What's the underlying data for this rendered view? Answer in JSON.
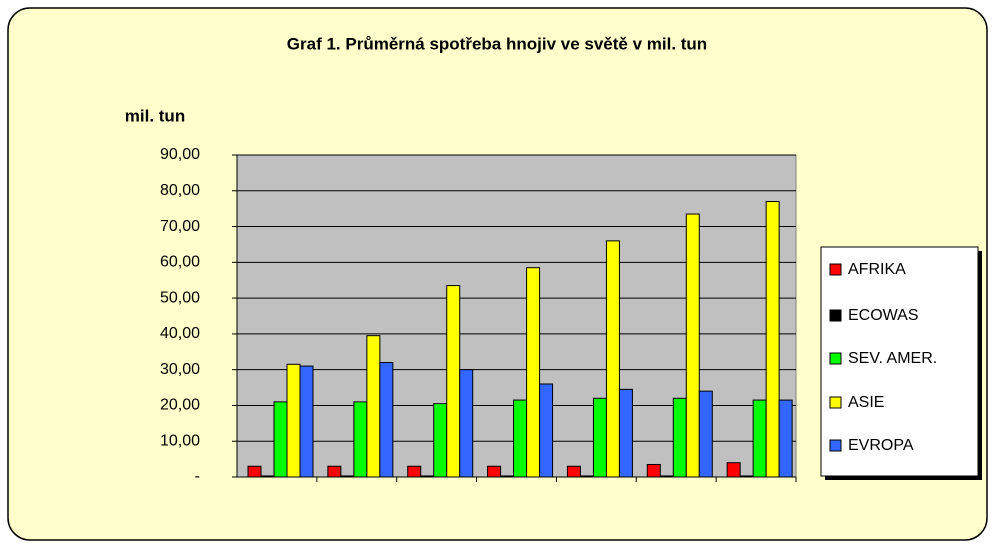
{
  "chart_data": {
    "type": "bar",
    "title": "Graf 1. Průměrná spotřeba hnojiv ve světě v mil. tun",
    "y_label": "mil. tun",
    "categories": [
      null,
      null,
      null,
      null,
      null,
      null,
      null
    ],
    "series": [
      {
        "name": "AFRIKA",
        "color": "#ff0000",
        "values": [
          3,
          3,
          3,
          3,
          3,
          3.5,
          4
        ]
      },
      {
        "name": "ECOWAS",
        "color": "#000000",
        "values": [
          0.3,
          0.3,
          0.3,
          0.3,
          0.3,
          0.3,
          0.3
        ]
      },
      {
        "name": "SEV. AMER.",
        "color": "#00ff00",
        "values": [
          21,
          21,
          20.5,
          21.5,
          22,
          22,
          21.5
        ]
      },
      {
        "name": "ASIE",
        "color": "#ffff00",
        "values": [
          31.5,
          39.5,
          53.5,
          58.5,
          66,
          73.5,
          77
        ]
      },
      {
        "name": "EVROPA",
        "color": "#3366ff",
        "values": [
          31,
          32,
          30,
          26,
          24.5,
          24,
          21.5
        ]
      }
    ],
    "ylim": [
      0,
      90
    ],
    "yticks": [
      {
        "value": 0,
        "label": "-"
      },
      {
        "value": 10,
        "label": "10,00"
      },
      {
        "value": 20,
        "label": "20,00"
      },
      {
        "value": 30,
        "label": "30,00"
      },
      {
        "value": 40,
        "label": "40,00"
      },
      {
        "value": 50,
        "label": "50,00"
      },
      {
        "value": 60,
        "label": "60,00"
      },
      {
        "value": 70,
        "label": "70,00"
      },
      {
        "value": 80,
        "label": "80,00"
      },
      {
        "value": 90,
        "label": "90,00"
      }
    ],
    "grid": true,
    "legend": "right"
  }
}
